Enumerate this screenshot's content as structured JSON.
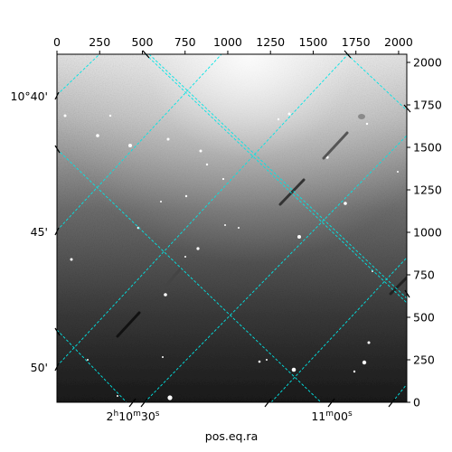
{
  "figure": {
    "xlabel": "pos.eq.ra",
    "colors": {
      "grid": "#00e5e5",
      "frame": "#000000",
      "background": "#ffffff"
    }
  },
  "pixel_axes": {
    "top_ticks": [
      "0",
      "250",
      "500",
      "750",
      "1000",
      "1250",
      "1500",
      "1750",
      "2000"
    ],
    "right_ticks": [
      "0",
      "250",
      "500",
      "750",
      "1000",
      "1250",
      "1500",
      "1750",
      "2000"
    ]
  },
  "world_axes": {
    "dec_labels": [
      "10°40'",
      "45'",
      "50'"
    ],
    "ra_labels": [
      {
        "pre": "2",
        "h": "h",
        "mid": "10",
        "m": "m",
        "post": "30",
        "s": "s"
      },
      {
        "pre": "11",
        "h": "",
        "mid": "",
        "m": "m",
        "post": "00",
        "s": "s"
      }
    ]
  },
  "chart_data": {
    "type": "heatmap",
    "xlabel": "pos.eq.ra",
    "xlim": [
      0,
      2048
    ],
    "ylim": [
      0,
      2048
    ],
    "grid": true
  }
}
